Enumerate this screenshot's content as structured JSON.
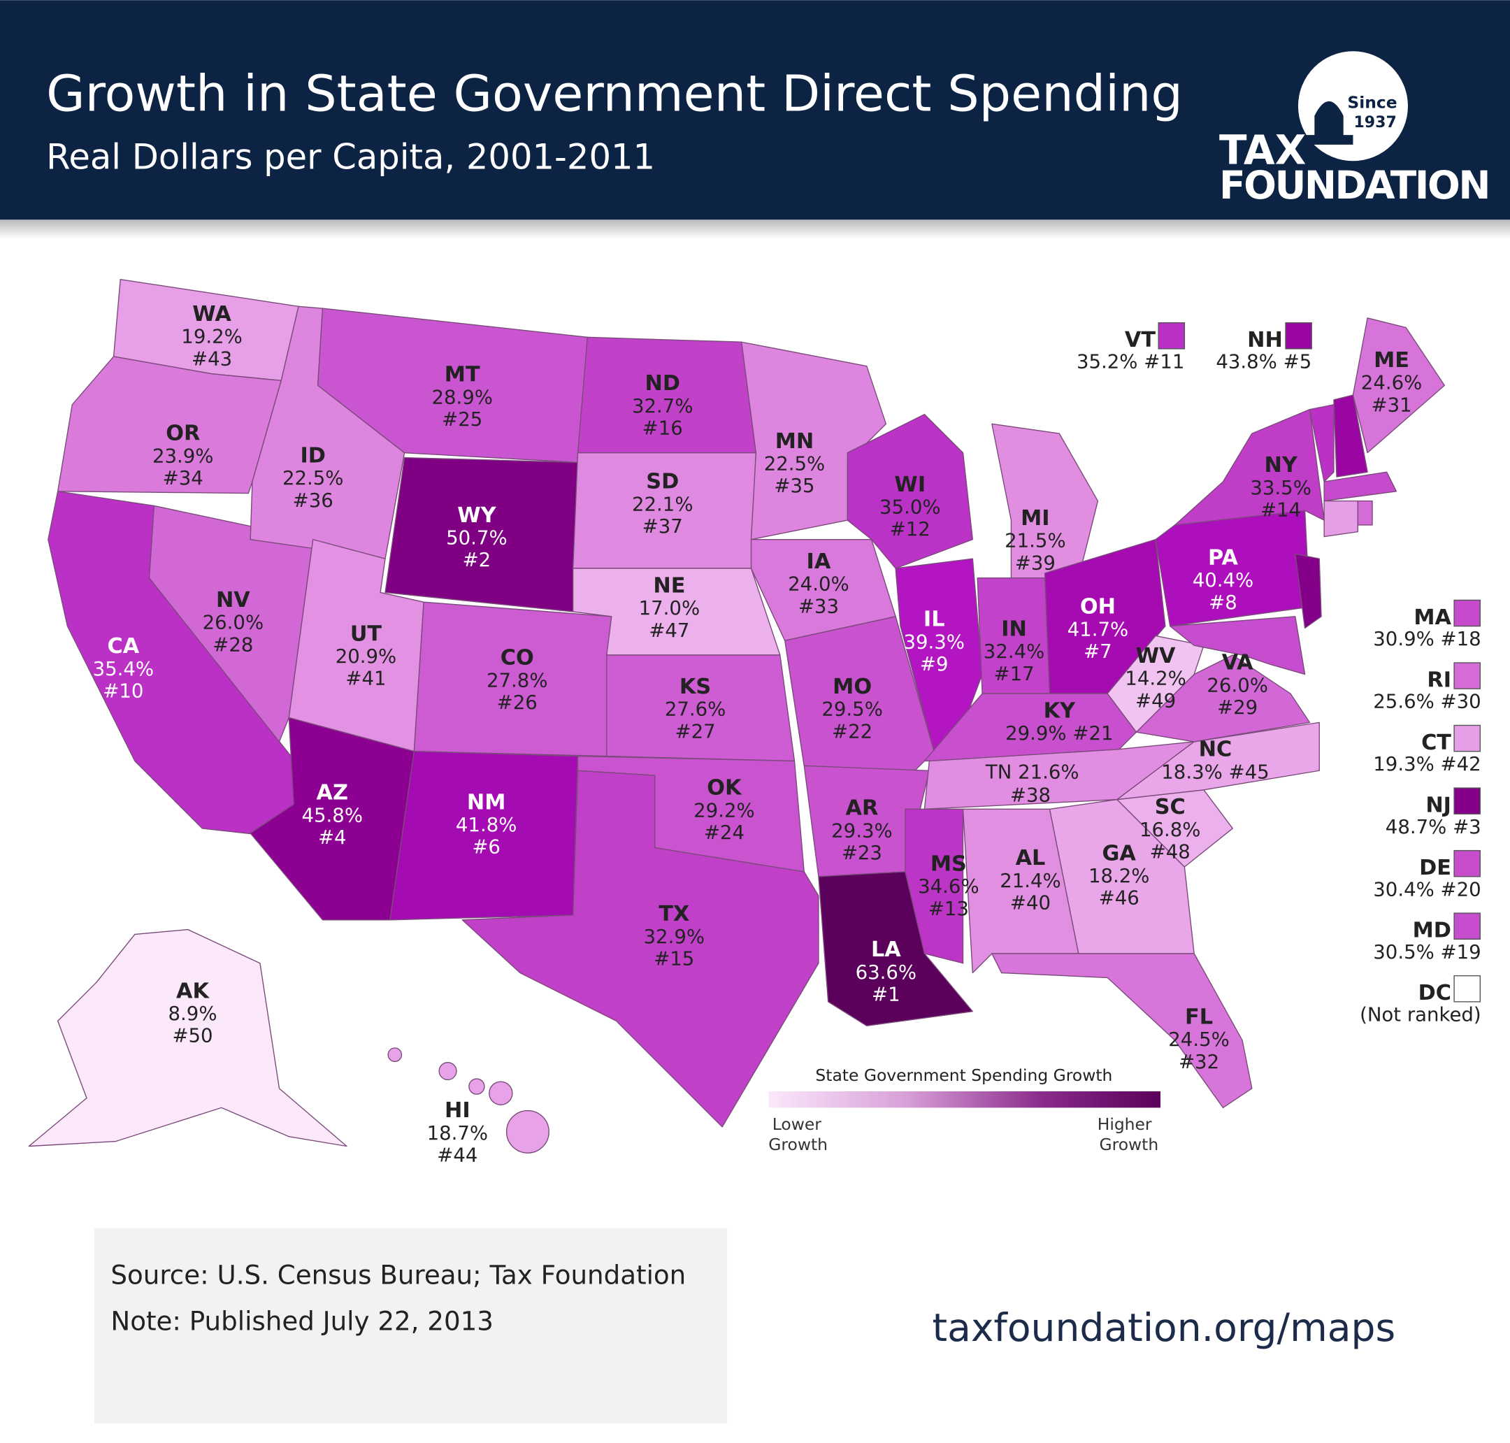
{
  "header": {
    "title": "Growth in State Government Direct Spending",
    "subtitle": "Real Dollars per Capita, 2001-2011",
    "logo": {
      "since": "Since",
      "year": "1937",
      "line1": "TAX",
      "line2": "FOUNDATION"
    },
    "background_color": "#0d2344"
  },
  "legend": {
    "title": "State Government Spending Growth",
    "low_label_1": "Lower",
    "low_label_2": "Growth",
    "high_label_1": "Higher",
    "high_label_2": "Growth",
    "low_color": "#fbe8fb",
    "high_color": "#5a005a"
  },
  "states": [
    {
      "abbr": "LA",
      "pct": "63.6%",
      "value": 63.6,
      "rank": "#1"
    },
    {
      "abbr": "WY",
      "pct": "50.7%",
      "value": 50.7,
      "rank": "#2"
    },
    {
      "abbr": "NJ",
      "pct": "48.7%",
      "value": 48.7,
      "rank": "#3"
    },
    {
      "abbr": "AZ",
      "pct": "45.8%",
      "value": 45.8,
      "rank": "#4"
    },
    {
      "abbr": "NH",
      "pct": "43.8%",
      "value": 43.8,
      "rank": "#5"
    },
    {
      "abbr": "NM",
      "pct": "41.8%",
      "value": 41.8,
      "rank": "#6"
    },
    {
      "abbr": "OH",
      "pct": "41.7%",
      "value": 41.7,
      "rank": "#7"
    },
    {
      "abbr": "PA",
      "pct": "40.4%",
      "value": 40.4,
      "rank": "#8"
    },
    {
      "abbr": "IL",
      "pct": "39.3%",
      "value": 39.3,
      "rank": "#9"
    },
    {
      "abbr": "CA",
      "pct": "35.4%",
      "value": 35.4,
      "rank": "#10"
    },
    {
      "abbr": "VT",
      "pct": "35.2%",
      "value": 35.2,
      "rank": "#11"
    },
    {
      "abbr": "WI",
      "pct": "35.0%",
      "value": 35.0,
      "rank": "#12"
    },
    {
      "abbr": "MS",
      "pct": "34.6%",
      "value": 34.6,
      "rank": "#13"
    },
    {
      "abbr": "NY",
      "pct": "33.5%",
      "value": 33.5,
      "rank": "#14"
    },
    {
      "abbr": "TX",
      "pct": "32.9%",
      "value": 32.9,
      "rank": "#15"
    },
    {
      "abbr": "ND",
      "pct": "32.7%",
      "value": 32.7,
      "rank": "#16"
    },
    {
      "abbr": "IN",
      "pct": "32.4%",
      "value": 32.4,
      "rank": "#17"
    },
    {
      "abbr": "MA",
      "pct": "30.9%",
      "value": 30.9,
      "rank": "#18"
    },
    {
      "abbr": "MD",
      "pct": "30.5%",
      "value": 30.5,
      "rank": "#19"
    },
    {
      "abbr": "DE",
      "pct": "30.4%",
      "value": 30.4,
      "rank": "#20"
    },
    {
      "abbr": "KY",
      "pct": "29.9%",
      "value": 29.9,
      "rank": "#21"
    },
    {
      "abbr": "MO",
      "pct": "29.5%",
      "value": 29.5,
      "rank": "#22"
    },
    {
      "abbr": "AR",
      "pct": "29.3%",
      "value": 29.3,
      "rank": "#23"
    },
    {
      "abbr": "OK",
      "pct": "29.2%",
      "value": 29.2,
      "rank": "#24"
    },
    {
      "abbr": "MT",
      "pct": "28.9%",
      "value": 28.9,
      "rank": "#25"
    },
    {
      "abbr": "CO",
      "pct": "27.8%",
      "value": 27.8,
      "rank": "#26"
    },
    {
      "abbr": "KS",
      "pct": "27.6%",
      "value": 27.6,
      "rank": "#27"
    },
    {
      "abbr": "NV",
      "pct": "26.0%",
      "value": 26.0,
      "rank": "#28"
    },
    {
      "abbr": "VA",
      "pct": "26.0%",
      "value": 26.0,
      "rank": "#29"
    },
    {
      "abbr": "RI",
      "pct": "25.6%",
      "value": 25.6,
      "rank": "#30"
    },
    {
      "abbr": "ME",
      "pct": "24.6%",
      "value": 24.6,
      "rank": "#31"
    },
    {
      "abbr": "FL",
      "pct": "24.5%",
      "value": 24.5,
      "rank": "#32"
    },
    {
      "abbr": "IA",
      "pct": "24.0%",
      "value": 24.0,
      "rank": "#33"
    },
    {
      "abbr": "OR",
      "pct": "23.9%",
      "value": 23.9,
      "rank": "#34"
    },
    {
      "abbr": "MN",
      "pct": "22.5%",
      "value": 22.5,
      "rank": "#35"
    },
    {
      "abbr": "ID",
      "pct": "22.5%",
      "value": 22.5,
      "rank": "#36"
    },
    {
      "abbr": "SD",
      "pct": "22.1%",
      "value": 22.1,
      "rank": "#37"
    },
    {
      "abbr": "TN",
      "pct": "21.6%",
      "value": 21.6,
      "rank": "#38"
    },
    {
      "abbr": "MI",
      "pct": "21.5%",
      "value": 21.5,
      "rank": "#39"
    },
    {
      "abbr": "AL",
      "pct": "21.4%",
      "value": 21.4,
      "rank": "#40"
    },
    {
      "abbr": "UT",
      "pct": "20.9%",
      "value": 20.9,
      "rank": "#41"
    },
    {
      "abbr": "CT",
      "pct": "19.3%",
      "value": 19.3,
      "rank": "#42"
    },
    {
      "abbr": "WA",
      "pct": "19.2%",
      "value": 19.2,
      "rank": "#43"
    },
    {
      "abbr": "HI",
      "pct": "18.7%",
      "value": 18.7,
      "rank": "#44"
    },
    {
      "abbr": "NC",
      "pct": "18.3%",
      "value": 18.3,
      "rank": "#45"
    },
    {
      "abbr": "GA",
      "pct": "18.2%",
      "value": 18.2,
      "rank": "#46"
    },
    {
      "abbr": "NE",
      "pct": "17.0%",
      "value": 17.0,
      "rank": "#47"
    },
    {
      "abbr": "SC",
      "pct": "16.8%",
      "value": 16.8,
      "rank": "#48"
    },
    {
      "abbr": "WV",
      "pct": "14.2%",
      "value": 14.2,
      "rank": "#49"
    },
    {
      "abbr": "AK",
      "pct": "8.9%",
      "value": 8.9,
      "rank": "#50"
    }
  ],
  "dc": {
    "abbr": "DC",
    "note": "(Not ranked)"
  },
  "footer": {
    "source": "Source: U.S. Census Bureau; Tax Foundation",
    "note": "Note: Published July 22, 2013",
    "url": "taxfoundation.org/maps"
  }
}
